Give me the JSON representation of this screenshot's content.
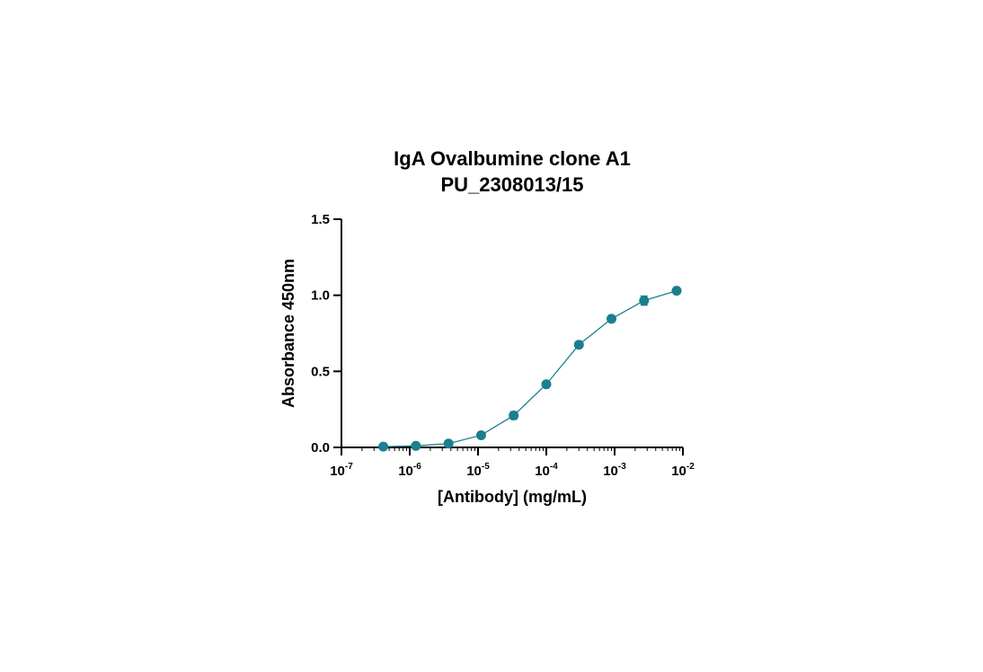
{
  "chart_data": {
    "type": "scatter",
    "title_lines": [
      "IgA Ovalbumine clone A1",
      "PU_2308013/15"
    ],
    "xlabel": "[Antibody] (mg/mL)",
    "ylabel": "Absorbance 450nm",
    "x_scale": "log10",
    "xlim": [
      1e-07,
      0.01
    ],
    "ylim": [
      0,
      1.5
    ],
    "x_ticks": [
      {
        "base": "10",
        "exp": "-7",
        "value": 1e-07
      },
      {
        "base": "10",
        "exp": "-6",
        "value": 1e-06
      },
      {
        "base": "10",
        "exp": "-5",
        "value": 1e-05
      },
      {
        "base": "10",
        "exp": "-4",
        "value": 0.0001
      },
      {
        "base": "10",
        "exp": "-3",
        "value": 0.001
      },
      {
        "base": "10",
        "exp": "-2",
        "value": 0.01
      }
    ],
    "y_ticks": [
      {
        "label": "0.0",
        "value": 0
      },
      {
        "label": "0.5",
        "value": 0.5
      },
      {
        "label": "1.0",
        "value": 1.0
      },
      {
        "label": "1.5",
        "value": 1.5
      }
    ],
    "grid": false,
    "legend": "none",
    "series": [
      {
        "color": "#1a7f8e",
        "x": [
          4.1e-07,
          1.23e-06,
          3.7e-06,
          1.11e-05,
          3.33e-05,
          0.0001,
          0.0003,
          0.0009,
          0.0027,
          0.0081
        ],
        "y": [
          0.005,
          0.01,
          0.025,
          0.08,
          0.21,
          0.415,
          0.675,
          0.845,
          0.965,
          1.03
        ],
        "error": [
          0.005,
          0.008,
          0.008,
          0.01,
          0.025,
          0.015,
          0.012,
          0.012,
          0.03,
          0.012
        ]
      }
    ]
  }
}
